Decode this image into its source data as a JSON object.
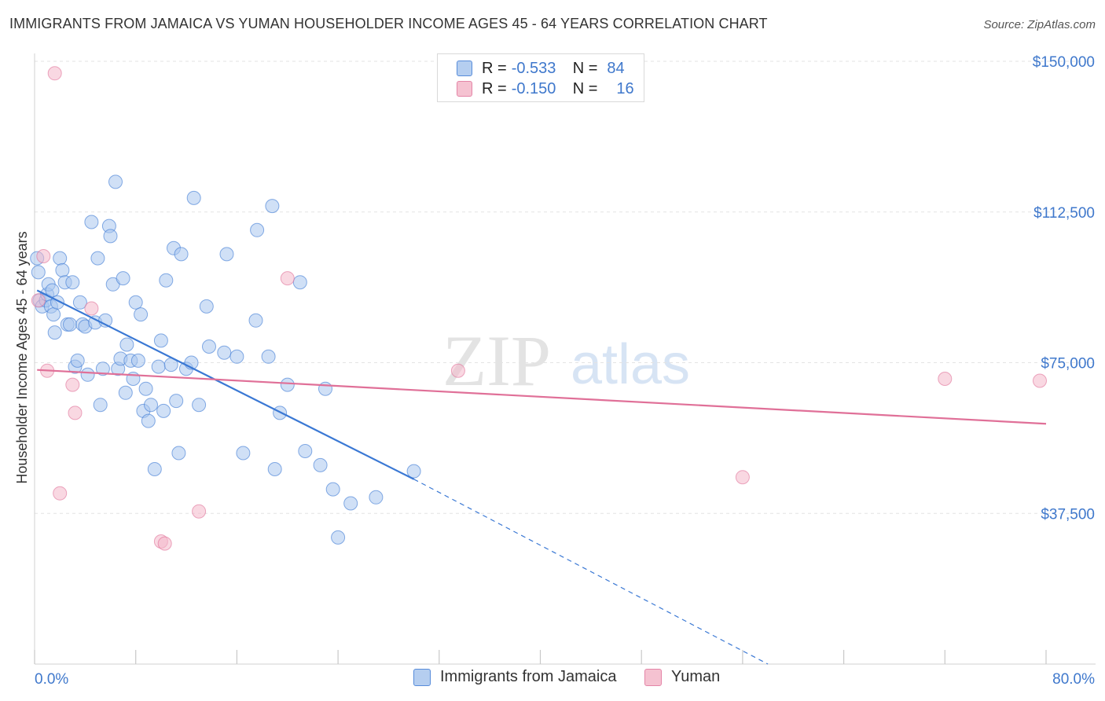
{
  "title": "IMMIGRANTS FROM JAMAICA VS YUMAN HOUSEHOLDER INCOME AGES 45 - 64 YEARS CORRELATION CHART",
  "source": "Source: ZipAtlas.com",
  "watermark": {
    "zip": "ZIP",
    "atlas": "atlas"
  },
  "legend_top": [
    {
      "r_label": "R =",
      "r_value": "-0.533",
      "n_label": "N =",
      "n_value": "84",
      "color": "#a9c6ee"
    },
    {
      "r_label": "R =",
      "r_value": "-0.150",
      "n_label": "N =",
      "n_value": "16",
      "color": "#f4b8ca"
    }
  ],
  "chart_data": {
    "type": "scatter",
    "title": "IMMIGRANTS FROM JAMAICA VS YUMAN HOUSEHOLDER INCOME AGES 45 - 64 YEARS CORRELATION CHART",
    "xlabel": "",
    "ylabel": "Householder Income Ages 45 - 64 years",
    "xlim": [
      0,
      80
    ],
    "ylim": [
      0,
      150000
    ],
    "x_tick_labels": {
      "min": "0.0%",
      "max": "80.0%"
    },
    "y_ticks": [
      {
        "value": 37500,
        "label": "$37,500"
      },
      {
        "value": 75000,
        "label": "$75,000"
      },
      {
        "value": 112500,
        "label": "$112,500"
      },
      {
        "value": 150000,
        "label": "$150,000"
      }
    ],
    "series": [
      {
        "name": "Immigrants from Jamaica",
        "color": "#3a78d4",
        "fill": "#a9c6ee",
        "trend": {
          "x1": 0.2,
          "y1": 93000,
          "x2": 30,
          "y2": 46000,
          "dash_to_x": 58,
          "dash_to_y": 0
        },
        "points": [
          [
            0.2,
            101000
          ],
          [
            0.3,
            97500
          ],
          [
            0.4,
            90500
          ],
          [
            0.6,
            89000
          ],
          [
            0.9,
            90500
          ],
          [
            1.0,
            92000
          ],
          [
            1.1,
            94500
          ],
          [
            1.3,
            89000
          ],
          [
            1.4,
            93000
          ],
          [
            1.5,
            87000
          ],
          [
            1.6,
            82500
          ],
          [
            1.8,
            90000
          ],
          [
            2.0,
            101000
          ],
          [
            2.2,
            98000
          ],
          [
            2.4,
            95000
          ],
          [
            2.6,
            84500
          ],
          [
            2.8,
            84500
          ],
          [
            3.0,
            95000
          ],
          [
            3.2,
            74000
          ],
          [
            3.4,
            75500
          ],
          [
            3.6,
            90000
          ],
          [
            3.8,
            84500
          ],
          [
            4.0,
            84000
          ],
          [
            4.2,
            72000
          ],
          [
            4.5,
            110000
          ],
          [
            4.8,
            85000
          ],
          [
            5.0,
            101000
          ],
          [
            5.2,
            64500
          ],
          [
            5.4,
            73500
          ],
          [
            5.6,
            85500
          ],
          [
            5.9,
            109000
          ],
          [
            6.0,
            106500
          ],
          [
            6.2,
            94500
          ],
          [
            6.4,
            120000
          ],
          [
            6.6,
            73500
          ],
          [
            6.8,
            76000
          ],
          [
            7.0,
            96000
          ],
          [
            7.2,
            67500
          ],
          [
            7.3,
            79500
          ],
          [
            7.6,
            75500
          ],
          [
            7.8,
            71000
          ],
          [
            8.0,
            90000
          ],
          [
            8.2,
            75500
          ],
          [
            8.4,
            87000
          ],
          [
            8.6,
            63000
          ],
          [
            8.8,
            68500
          ],
          [
            9.0,
            60500
          ],
          [
            9.2,
            64500
          ],
          [
            9.5,
            48500
          ],
          [
            9.8,
            74000
          ],
          [
            10.0,
            80500
          ],
          [
            10.2,
            63000
          ],
          [
            10.4,
            95500
          ],
          [
            10.8,
            74500
          ],
          [
            11.0,
            103500
          ],
          [
            11.2,
            65500
          ],
          [
            11.4,
            52500
          ],
          [
            11.6,
            102000
          ],
          [
            12.0,
            73500
          ],
          [
            12.4,
            75000
          ],
          [
            12.6,
            116000
          ],
          [
            13.0,
            64500
          ],
          [
            13.6,
            89000
          ],
          [
            13.8,
            79000
          ],
          [
            15.0,
            77500
          ],
          [
            15.2,
            102000
          ],
          [
            16.0,
            76500
          ],
          [
            16.5,
            52500
          ],
          [
            17.5,
            85500
          ],
          [
            17.6,
            108000
          ],
          [
            18.5,
            76500
          ],
          [
            18.8,
            114000
          ],
          [
            19.0,
            48500
          ],
          [
            19.4,
            62500
          ],
          [
            20.0,
            69500
          ],
          [
            21.0,
            95000
          ],
          [
            21.4,
            53000
          ],
          [
            22.6,
            49500
          ],
          [
            23.0,
            68500
          ],
          [
            23.6,
            43500
          ],
          [
            24.0,
            31500
          ],
          [
            25.0,
            40000
          ],
          [
            27.0,
            41500
          ],
          [
            30.0,
            48000
          ]
        ]
      },
      {
        "name": "Yuman",
        "color": "#e07098",
        "fill": "#f4b8ca",
        "trend": {
          "x1": 0.2,
          "y1": 73200,
          "x2": 80,
          "y2": 59800
        },
        "points": [
          [
            0.3,
            90500
          ],
          [
            0.7,
            101500
          ],
          [
            1.0,
            73000
          ],
          [
            1.6,
            147000
          ],
          [
            2.0,
            42500
          ],
          [
            3.0,
            69500
          ],
          [
            3.2,
            62500
          ],
          [
            4.5,
            88500
          ],
          [
            10.0,
            30500
          ],
          [
            10.3,
            30000
          ],
          [
            13.0,
            38000
          ],
          [
            20.0,
            96000
          ],
          [
            33.5,
            73000
          ],
          [
            56.0,
            46500
          ],
          [
            72.0,
            71000
          ],
          [
            79.5,
            70500
          ]
        ]
      }
    ]
  }
}
